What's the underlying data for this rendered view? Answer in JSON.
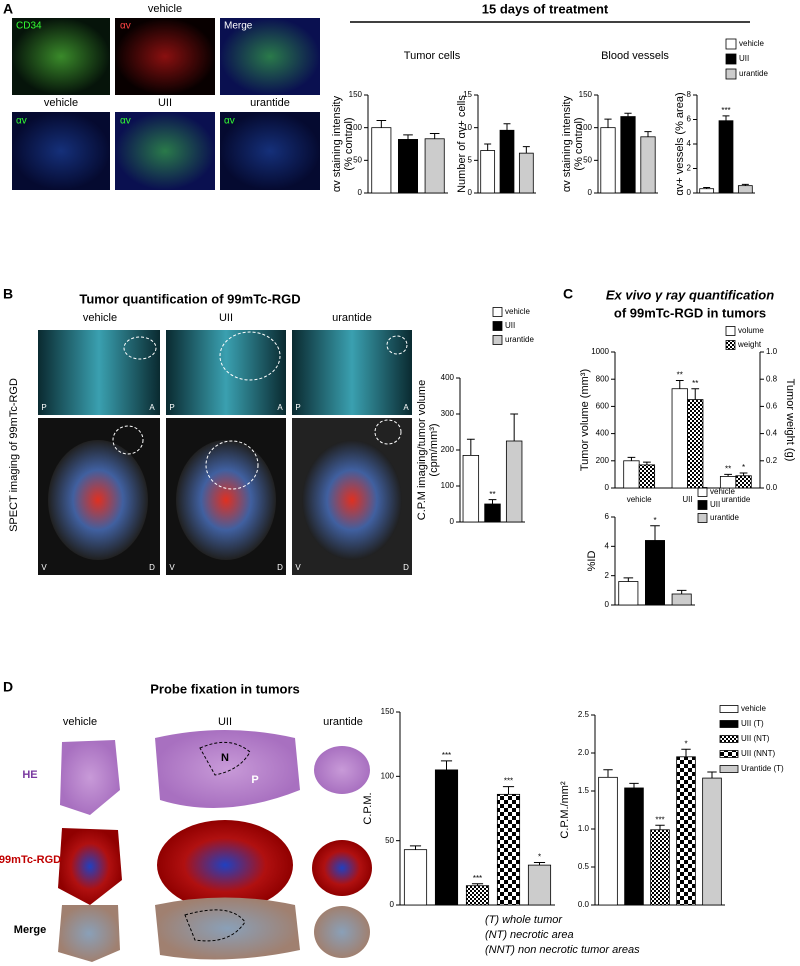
{
  "panel_labels": [
    "A",
    "B",
    "C",
    "D"
  ],
  "panel_a": {
    "heading": "vehicle",
    "stain_labels": [
      "CD34",
      "αv",
      "Merge"
    ],
    "groups": [
      "vehicle",
      "UII",
      "urantide"
    ],
    "stain": "αv",
    "treatment": "15 days of treatment",
    "sections": [
      "Tumor cells",
      "Blood vessels"
    ],
    "legend": [
      "vehicle",
      "UII",
      "urantide"
    ]
  },
  "panel_b": {
    "title": "Tumor quantification of 99mTc-RGD",
    "groups": [
      "vehicle",
      "UII",
      "urantide"
    ],
    "side_label": "SPECT imaging of 99mTc-RGD",
    "top_corners": [
      "P",
      "A"
    ],
    "bottom_corners": [
      "V",
      "D"
    ],
    "legend": [
      "vehicle",
      "UII",
      "urantide"
    ]
  },
  "panel_c": {
    "title": [
      "Ex vivo γ ray quantification",
      "of 99mTc-RGD in tumors"
    ],
    "legend": [
      "volume",
      "weight"
    ],
    "legend2": [
      "vehicle",
      "UII",
      "urantide"
    ]
  },
  "panel_d": {
    "title": "Probe fixation in tumors",
    "groups": [
      "vehicle",
      "UII",
      "urantide"
    ],
    "rows": [
      "HE",
      "99mTc-RGD",
      "Merge"
    ],
    "region_labels": [
      "N",
      "P"
    ],
    "legend": [
      "vehicle",
      "UII (T)",
      "UII (NT)",
      "UII (NNT)",
      "Urantide (T)"
    ],
    "notes": [
      "(T) whole tumor",
      "(NT) necrotic area",
      "(NNT) non necrotic tumor areas"
    ]
  },
  "chart_data": [
    {
      "type": "bar",
      "ylabel": [
        "αv staining intensity",
        "(% control)"
      ],
      "ylim": [
        0,
        150
      ],
      "yticks": [
        0,
        50,
        100,
        150
      ],
      "values": [
        100,
        82,
        83
      ],
      "errors": [
        11,
        7,
        8
      ],
      "fills": [
        "#ffffff",
        "#000000",
        "#cccccc"
      ]
    },
    {
      "type": "bar",
      "ylabel": [
        "Number of αv+ cells"
      ],
      "ylim": [
        0,
        15
      ],
      "yticks": [
        0,
        5,
        10,
        15
      ],
      "values": [
        6.5,
        9.6,
        6.1
      ],
      "errors": [
        1,
        1,
        1
      ],
      "fills": [
        "#ffffff",
        "#000000",
        "#cccccc"
      ]
    },
    {
      "type": "bar",
      "ylabel": [
        "αv staining intensity",
        "(% control)"
      ],
      "ylim": [
        0,
        150
      ],
      "yticks": [
        0,
        50,
        100,
        150
      ],
      "values": [
        100,
        117,
        86
      ],
      "errors": [
        13,
        5,
        8
      ],
      "fills": [
        "#ffffff",
        "#000000",
        "#cccccc"
      ]
    },
    {
      "type": "bar",
      "ylabel": [
        "αv+ vessels (% area)"
      ],
      "ylim": [
        0,
        8
      ],
      "yticks": [
        0,
        2,
        4,
        6,
        8
      ],
      "values": [
        0.35,
        5.9,
        0.6
      ],
      "errors": [
        0.1,
        0.4,
        0.1
      ],
      "fills": [
        "#ffffff",
        "#000000",
        "#cccccc"
      ],
      "annotations": [
        {
          "index": 1,
          "text": "***"
        }
      ]
    },
    {
      "type": "bar",
      "ylabel": [
        "C.P.M imaging/tumor volume",
        "(cpm/mm³)"
      ],
      "ylim": [
        0,
        400
      ],
      "yticks": [
        0,
        100,
        200,
        300,
        400
      ],
      "values": [
        185,
        50,
        225
      ],
      "errors": [
        45,
        12,
        75
      ],
      "fills": [
        "#ffffff",
        "#000000",
        "#cccccc"
      ],
      "annotations": [
        {
          "index": 1,
          "text": "**"
        }
      ]
    },
    {
      "type": "grouped_bar",
      "ylabel": [
        "Tumor volume (mm³)"
      ],
      "y2label": [
        "Tumor weight (g)"
      ],
      "categories": [
        "vehicle",
        "UII",
        "urantide"
      ],
      "ylim": [
        0,
        1000
      ],
      "yticks": [
        0,
        200,
        400,
        600,
        800,
        1000
      ],
      "y2lim": [
        0,
        1
      ],
      "y2ticks": [
        {
          "value": 0,
          "label": "0.0"
        },
        0.2,
        0.4,
        0.6,
        0.8,
        {
          "value": 1,
          "label": "1.0"
        }
      ],
      "series": [
        {
          "name": "volume",
          "fill": "#ffffff",
          "values": [
            200,
            730,
            85
          ],
          "errors": [
            25,
            60,
            15
          ]
        },
        {
          "name": "weight",
          "fill": "checker",
          "axis": "y2",
          "values": [
            0.17,
            0.65,
            0.09
          ],
          "errors": [
            0.02,
            0.08,
            0.02
          ]
        }
      ],
      "annotations": [
        {
          "series": 0,
          "index": 1,
          "text": "**"
        },
        {
          "series": 1,
          "index": 1,
          "text": "**"
        },
        {
          "series": 0,
          "index": 2,
          "text": "**"
        },
        {
          "series": 1,
          "index": 2,
          "text": "*"
        }
      ]
    },
    {
      "type": "bar",
      "ylabel": [
        "%ID"
      ],
      "ylim": [
        0,
        6
      ],
      "yticks": [
        0,
        2,
        4,
        6
      ],
      "values": [
        1.6,
        4.4,
        0.75
      ],
      "errors": [
        0.25,
        1,
        0.25
      ],
      "fills": [
        "#ffffff",
        "#000000",
        "#cccccc"
      ],
      "annotations": [
        {
          "index": 1,
          "text": "*"
        }
      ]
    },
    {
      "type": "bar",
      "ylabel": [
        "C.P.M."
      ],
      "ylim": [
        0,
        150
      ],
      "yticks": [
        0,
        50,
        100,
        150
      ],
      "values": [
        43,
        105,
        15,
        86,
        31
      ],
      "errors": [
        3,
        7,
        1.5,
        6,
        2
      ],
      "fills": [
        "#ffffff",
        "#000000",
        "checker",
        "bigchecker",
        "#cccccc"
      ],
      "annotations": [
        {
          "index": 1,
          "text": "***"
        },
        {
          "index": 2,
          "text": "***"
        },
        {
          "index": 3,
          "text": "***"
        },
        {
          "index": 4,
          "text": "*"
        }
      ]
    },
    {
      "type": "bar",
      "ylabel": [
        "C.P.M./mm²"
      ],
      "ylim": [
        0,
        2.5
      ],
      "yticks": [
        {
          "value": 0,
          "label": "0.0"
        },
        0.5,
        {
          "value": 1,
          "label": "1.0"
        },
        1.5,
        {
          "value": 2,
          "label": "2.0"
        },
        2.5
      ],
      "values": [
        1.68,
        1.54,
        0.99,
        1.95,
        1.67
      ],
      "errors": [
        0.1,
        0.06,
        0.06,
        0.1,
        0.08
      ],
      "fills": [
        "#ffffff",
        "#000000",
        "checker",
        "bigchecker",
        "#cccccc"
      ],
      "annotations": [
        {
          "index": 2,
          "text": "***"
        },
        {
          "index": 3,
          "text": "*"
        }
      ]
    }
  ]
}
